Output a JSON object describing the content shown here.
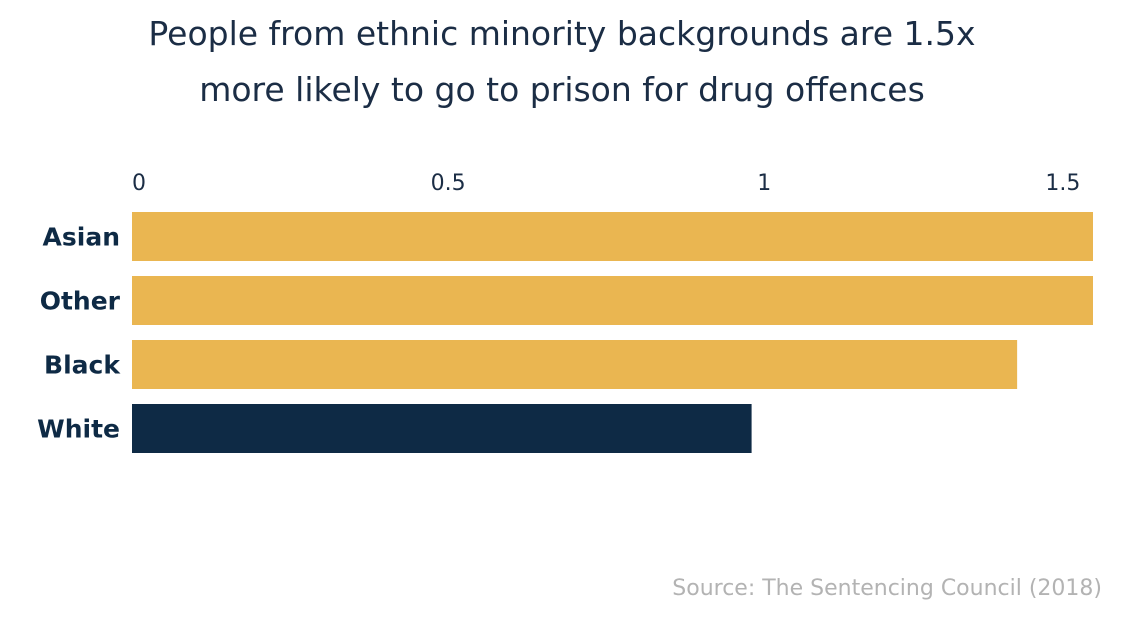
{
  "chart_data": {
    "type": "bar",
    "orientation": "horizontal",
    "title_lines": [
      "People from ethnic minority backgrounds are 1.5x",
      "more likely to go to prison for drug offences"
    ],
    "categories": [
      "Asian",
      "Other",
      "Black",
      "White"
    ],
    "values": [
      1.52,
      1.52,
      1.4,
      0.98
    ],
    "x_ticks": [
      {
        "value": 0,
        "label": "0"
      },
      {
        "value": 0.5,
        "label": "0.5"
      },
      {
        "value": 1,
        "label": "1"
      },
      {
        "value": 1.5,
        "label": "1.5"
      }
    ],
    "xlim": [
      0,
      1.52
    ],
    "xlabel": "",
    "ylabel": "",
    "grid": false,
    "legend": "none",
    "colors": {
      "minority": "#eab651",
      "white": "#0e2a45",
      "label": "#0e2a45",
      "tick": "#1b2d45"
    },
    "bar_colors": [
      "#eab651",
      "#eab651",
      "#eab651",
      "#0e2a45"
    ],
    "source": "Source: The Sentencing Council (2018)"
  }
}
